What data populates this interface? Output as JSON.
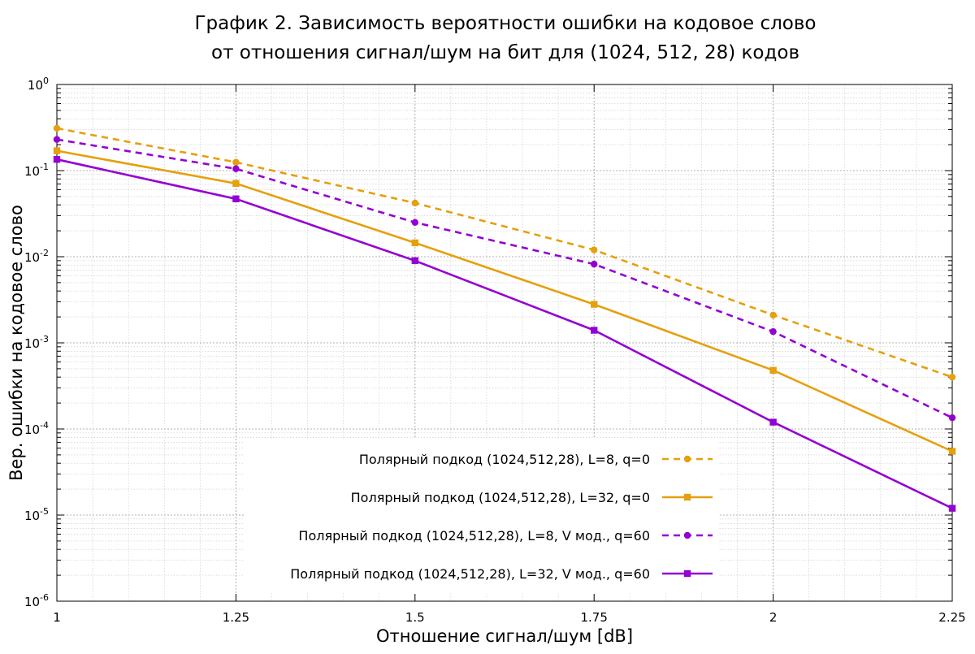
{
  "chart_data": {
    "type": "line",
    "title_lines": [
      "График 2. Зависимость вероятности ошибки на кодовое слово",
      "от отношения сигнал/шум на бит для (1024, 512, 28) кодов"
    ],
    "xlabel": "Отношение сигнал/шум [dB]",
    "ylabel": "Вер. ошибки на кодовое слово",
    "x_scale": "linear",
    "y_scale": "log",
    "xlim": [
      1,
      2.25
    ],
    "ylim": [
      1e-06,
      1
    ],
    "x_ticks": [
      {
        "value": 1,
        "label": "1"
      },
      {
        "value": 1.25,
        "label": "1.25"
      },
      {
        "value": 1.5,
        "label": "1.5"
      },
      {
        "value": 1.75,
        "label": "1.75"
      },
      {
        "value": 2,
        "label": "2"
      },
      {
        "value": 2.25,
        "label": "2.25"
      }
    ],
    "y_ticks": [
      {
        "exp": 0,
        "base": "10",
        "sup": "0"
      },
      {
        "exp": -1,
        "base": "10",
        "sup": "-1"
      },
      {
        "exp": -2,
        "base": "10",
        "sup": "-2"
      },
      {
        "exp": -3,
        "base": "10",
        "sup": "-3"
      },
      {
        "exp": -4,
        "base": "10",
        "sup": "-4"
      },
      {
        "exp": -5,
        "base": "10",
        "sup": "-5"
      },
      {
        "exp": -6,
        "base": "10",
        "sup": "-6"
      }
    ],
    "grid": true,
    "legend_position": "bottom-right",
    "x": [
      1,
      1.25,
      1.5,
      1.75,
      2,
      2.25
    ],
    "series": [
      {
        "name": "Полярный подкод (1024,512,28), L=8, q=0",
        "values": [
          0.31,
          0.125,
          0.042,
          0.012,
          0.0021,
          0.0004
        ],
        "color": "#e5a00d",
        "dash": "dashed",
        "marker": "circle"
      },
      {
        "name": "Полярный подкод (1024,512,28), L=32, q=0",
        "values": [
          0.17,
          0.071,
          0.0145,
          0.0028,
          0.00048,
          5.5e-05
        ],
        "color": "#e5a00d",
        "dash": "solid",
        "marker": "square"
      },
      {
        "name": "Полярный подкод (1024,512,28), L=8, V мод., q=60",
        "values": [
          0.23,
          0.105,
          0.025,
          0.0082,
          0.00135,
          0.000135
        ],
        "color": "#9400d3",
        "dash": "dashed",
        "marker": "circle"
      },
      {
        "name": "Полярный подкод (1024,512,28), L=32, V мод., q=60",
        "values": [
          0.135,
          0.047,
          0.009,
          0.0014,
          0.00012,
          1.2e-05
        ],
        "color": "#9400d3",
        "dash": "solid",
        "marker": "square"
      }
    ]
  }
}
